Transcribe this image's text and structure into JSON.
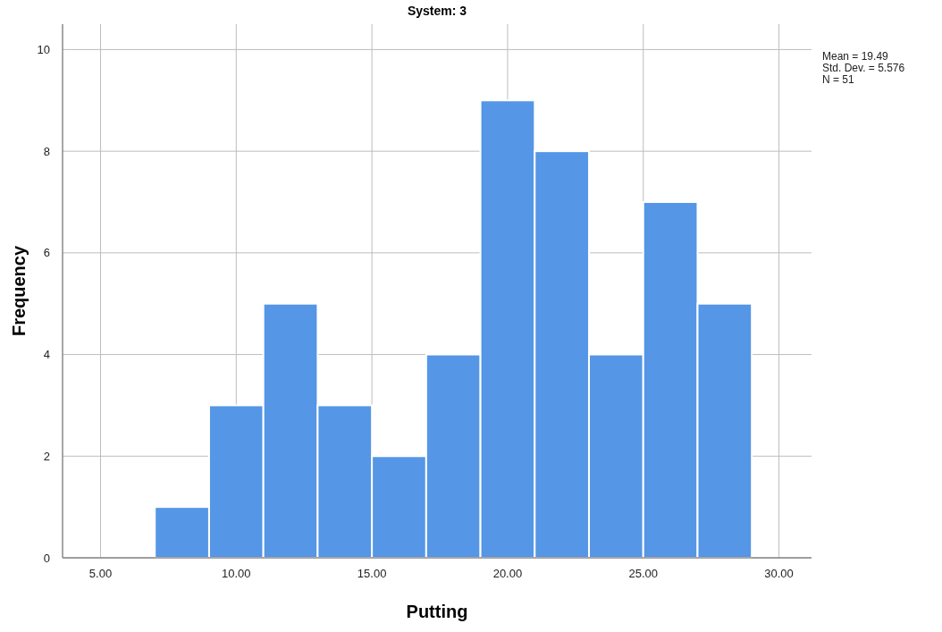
{
  "chart_data": {
    "type": "histogram",
    "title": "System: 3",
    "xlabel": "Putting",
    "ylabel": "Frequency",
    "bins": [
      7,
      9,
      11,
      13,
      15,
      17,
      19,
      21,
      23,
      25,
      27,
      29
    ],
    "values": [
      1,
      3,
      5,
      3,
      2,
      4,
      9,
      8,
      4,
      7,
      5
    ],
    "color": "#5596e6",
    "xlim": [
      3.6,
      31.2
    ],
    "xticks": [
      {
        "value": 5,
        "label": "5.00"
      },
      {
        "value": 10,
        "label": "10.00"
      },
      {
        "value": 15,
        "label": "15.00"
      },
      {
        "value": 20,
        "label": "20.00"
      },
      {
        "value": 25,
        "label": "25.00"
      },
      {
        "value": 30,
        "label": "30.00"
      }
    ],
    "ylim": [
      0,
      10.5
    ],
    "yticks": [
      0,
      2,
      4,
      6,
      8,
      10
    ],
    "grid": true,
    "annotations": [
      "Mean = 19.49",
      "Std. Dev. = 5.576",
      "N = 51"
    ]
  }
}
